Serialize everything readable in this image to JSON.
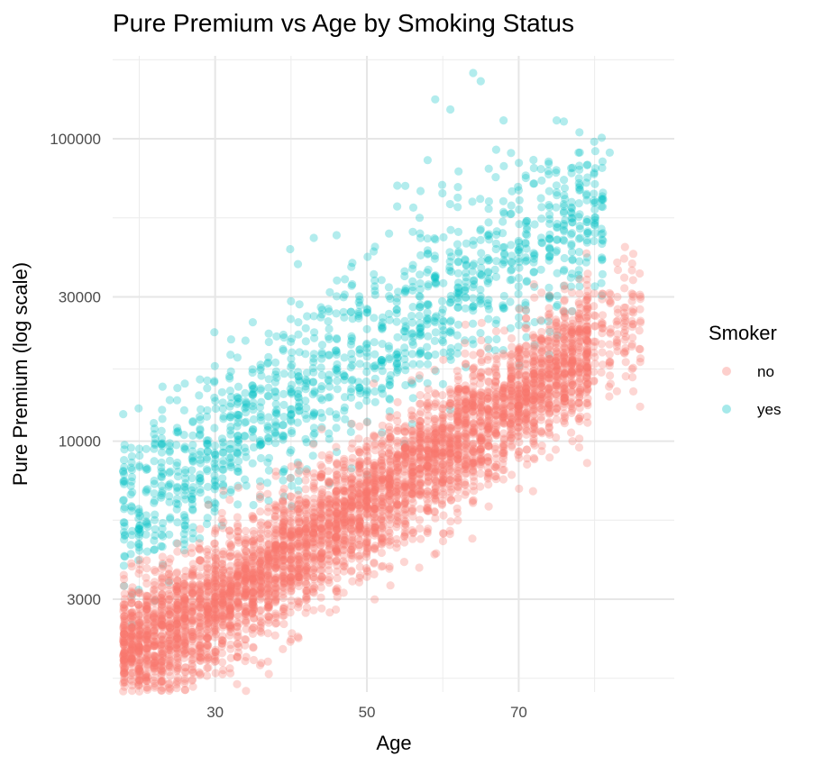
{
  "chart_data": {
    "type": "scatter",
    "title": "Pure Premium vs Age by Smoking Status",
    "xlabel": "Age",
    "ylabel": "Pure Premium (log scale)",
    "x_scale": "linear",
    "y_scale": "log10",
    "xlim": [
      16.5,
      90.5
    ],
    "ylim": [
      1480,
      188000
    ],
    "x_ticks": [
      30,
      50,
      70
    ],
    "x_tick_labels": [
      "30",
      "50",
      "70"
    ],
    "y_ticks": [
      3000,
      10000,
      30000,
      100000
    ],
    "y_tick_labels": [
      "3000",
      "10000",
      "30000",
      "100000"
    ],
    "grid": true,
    "legend": {
      "title": "Smoker",
      "position": "right"
    },
    "point_alpha": 0.3,
    "series": [
      {
        "name": "no",
        "color": "#F8766D",
        "trend": {
          "x": [
            18,
            30,
            40,
            50,
            60,
            70,
            80,
            85
          ],
          "y": [
            2000,
            2900,
            4200,
            6200,
            9300,
            14000,
            21000,
            25000
          ]
        },
        "spread_log10": 0.11,
        "approx_count": 4600
      },
      {
        "name": "yes",
        "color": "#00BFC4",
        "trend": {
          "x": [
            18,
            30,
            40,
            50,
            60,
            70,
            80
          ],
          "y": [
            5800,
            9000,
            14000,
            21000,
            30000,
            43000,
            60000
          ]
        },
        "spread_log10": 0.14,
        "approx_count": 1300
      }
    ],
    "sample_points": {
      "no": [
        [
          18,
          1700
        ],
        [
          18,
          2400
        ],
        [
          18,
          3500
        ],
        [
          20,
          1750
        ],
        [
          25,
          2600
        ],
        [
          30,
          2900
        ],
        [
          35,
          3500
        ],
        [
          40,
          4200
        ],
        [
          45,
          5200
        ],
        [
          50,
          6300
        ],
        [
          55,
          7700
        ],
        [
          60,
          9300
        ],
        [
          65,
          11500
        ],
        [
          70,
          14000
        ],
        [
          73,
          31000
        ],
        [
          75,
          17500
        ],
        [
          78,
          22000
        ],
        [
          80,
          24000
        ],
        [
          83,
          30000
        ],
        [
          85,
          22000
        ],
        [
          86,
          13000
        ]
      ],
      "yes": [
        [
          18,
          5000
        ],
        [
          18,
          7200
        ],
        [
          19,
          8500
        ],
        [
          22,
          11000
        ],
        [
          26,
          15500
        ],
        [
          28,
          16000
        ],
        [
          30,
          9000
        ],
        [
          34,
          21500
        ],
        [
          40,
          29000
        ],
        [
          43,
          47000
        ],
        [
          46,
          48000
        ],
        [
          50,
          21000
        ],
        [
          54,
          70000
        ],
        [
          58,
          85000
        ],
        [
          59,
          135000
        ],
        [
          61,
          125000
        ],
        [
          64,
          165000
        ],
        [
          65,
          155000
        ],
        [
          68,
          115000
        ],
        [
          70,
          43000
        ],
        [
          72,
          80000
        ],
        [
          75,
          115000
        ],
        [
          78,
          105000
        ],
        [
          80,
          52000
        ],
        [
          82,
          90000
        ]
      ]
    }
  }
}
